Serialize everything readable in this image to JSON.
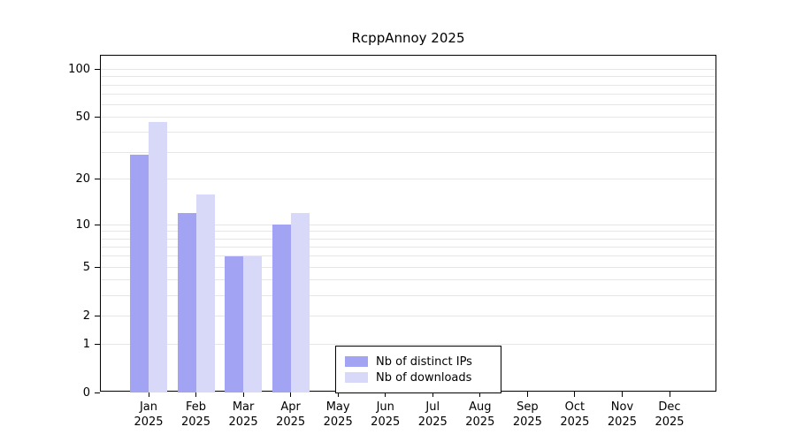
{
  "chart_data": {
    "type": "bar",
    "title": "RcppAnnoy 2025",
    "scale": "log1p",
    "categories": [
      "Jan",
      "Feb",
      "Mar",
      "Apr",
      "May",
      "Jun",
      "Jul",
      "Aug",
      "Sep",
      "Oct",
      "Nov",
      "Dec"
    ],
    "year_label": "2025",
    "series": [
      {
        "name": "Nb of distinct IPs",
        "color": "#a3a3f3",
        "values": [
          29,
          12,
          6,
          10,
          0,
          0,
          0,
          0,
          0,
          0,
          0,
          0
        ]
      },
      {
        "name": "Nb of downloads",
        "color": "#d8d8f8",
        "values": [
          47,
          16,
          6,
          12,
          0,
          0,
          0,
          0,
          0,
          0,
          0,
          0
        ]
      }
    ],
    "y_ticks": [
      0,
      1,
      2,
      5,
      10,
      20,
      50,
      100
    ],
    "grid_values": [
      1,
      2,
      3,
      4,
      5,
      6,
      7,
      8,
      9,
      10,
      20,
      30,
      40,
      50,
      60,
      70,
      80,
      90,
      100
    ],
    "ylim_top": 122,
    "grid_color": "#e6e6e6",
    "axis_color": "#000000",
    "legend_position": "bottom-center",
    "xlabel": "",
    "ylabel": ""
  }
}
